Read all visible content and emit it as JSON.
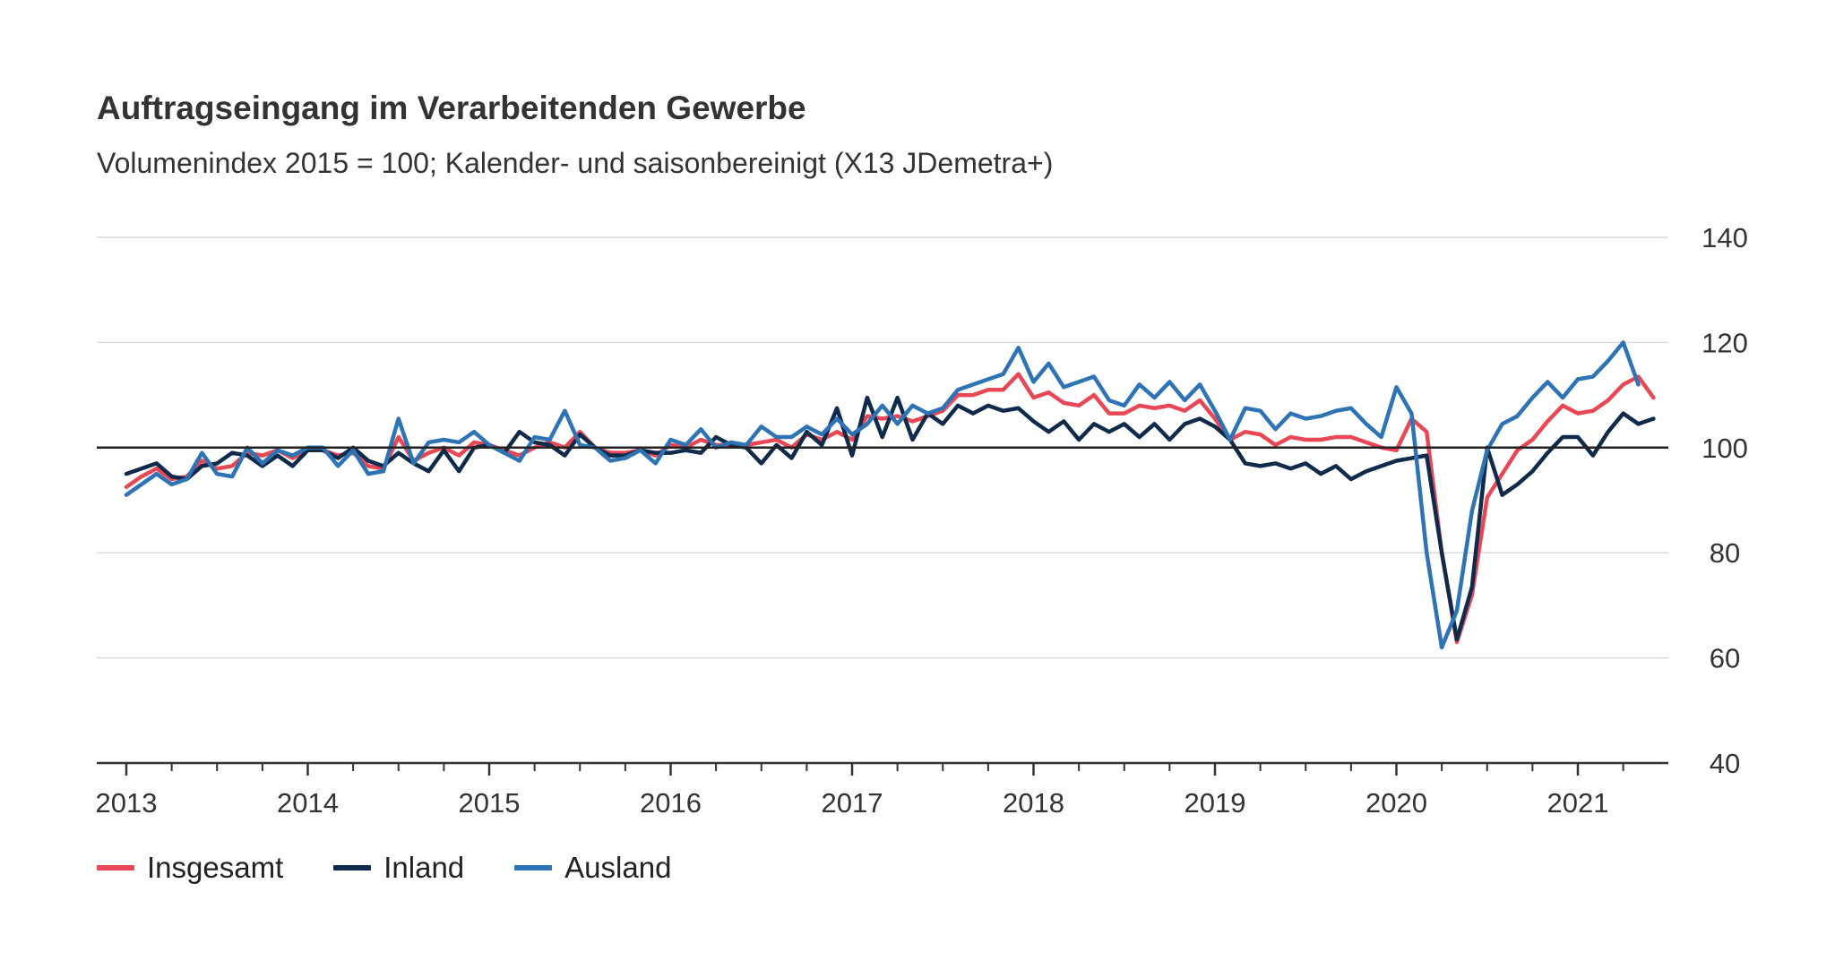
{
  "chart_data": {
    "type": "line",
    "title": "Auftragseingang im Verarbeitenden Gewerbe",
    "subtitle": "Volumenindex 2015 = 100; Kalender- und saisonbereinigt (X13 JDemetra+)",
    "xlabel": "",
    "ylabel": "",
    "ylim": [
      40,
      140
    ],
    "yticks": [
      40,
      60,
      80,
      100,
      120,
      140
    ],
    "x_start": "2013-01",
    "x_end": "2021-05",
    "xticks": [
      "2013",
      "2014",
      "2015",
      "2016",
      "2017",
      "2018",
      "2019",
      "2020",
      "2021"
    ],
    "reference_line": 100,
    "grid": true,
    "legend_position": "bottom-left",
    "series": [
      {
        "name": "Insgesamt",
        "color": "#e84855",
        "values": [
          92.5,
          94.5,
          96,
          94,
          94.5,
          97.5,
          96,
          96.5,
          99,
          98.5,
          99.5,
          98,
          99.5,
          99.5,
          98.5,
          99,
          96.5,
          96,
          102,
          97.5,
          99,
          100,
          98.5,
          101,
          100.5,
          99.5,
          98.5,
          100,
          101,
          100,
          103,
          100,
          99,
          99,
          99.5,
          98.5,
          100.5,
          100,
          101.5,
          100.5,
          100.5,
          100.5,
          101,
          101.5,
          100,
          102.5,
          101.5,
          103,
          101.5,
          106,
          105.5,
          106,
          105,
          106,
          107,
          110,
          110,
          111,
          111,
          114,
          109.5,
          110.5,
          108.5,
          108,
          110,
          106.5,
          106.5,
          108,
          107.5,
          108,
          107,
          109,
          105.5,
          101.5,
          103,
          102.5,
          100.5,
          102,
          101.5,
          101.5,
          102,
          102,
          101,
          100,
          99.5,
          105.5,
          103,
          80,
          63,
          72,
          90.5,
          95,
          99.5,
          101.5,
          105,
          108,
          106.5,
          107,
          109,
          112,
          113.5,
          109.5
        ]
      },
      {
        "name": "Inland",
        "color": "#0f2a4a",
        "values": [
          95,
          96,
          97,
          94.5,
          94,
          96.5,
          97,
          99,
          98.5,
          96.5,
          98.5,
          96.5,
          99.5,
          99.5,
          98,
          100,
          97.5,
          96.5,
          99,
          97,
          95.5,
          99.5,
          95.5,
          100,
          100.5,
          99,
          103,
          101,
          100.5,
          98.5,
          102.5,
          100,
          98.5,
          98.5,
          99.5,
          99,
          99,
          99.5,
          99,
          102,
          100.5,
          100,
          97,
          100.5,
          98,
          103,
          100.5,
          107.5,
          98.5,
          109.5,
          102,
          109.5,
          101.5,
          106.5,
          104.5,
          108,
          106.5,
          108,
          107,
          107.5,
          105,
          103,
          105,
          101.5,
          104.5,
          103,
          104.5,
          102,
          104.5,
          101.5,
          104.5,
          105.5,
          104,
          101.5,
          97,
          96.5,
          97,
          96,
          97,
          95,
          96.5,
          94,
          95.5,
          96.5,
          97.5,
          98,
          98.5,
          80,
          63.5,
          73.5,
          100,
          91,
          93,
          95.5,
          99,
          102,
          102,
          98.5,
          103,
          106.5,
          104.5,
          105.5
        ]
      },
      {
        "name": "Ausland",
        "color": "#2e74b5",
        "values": [
          91,
          93,
          95,
          93,
          94,
          99,
          95,
          94.5,
          100,
          97,
          99.5,
          98.5,
          100,
          100,
          96.5,
          99.5,
          95,
          95.5,
          105.5,
          97,
          101,
          101.5,
          101,
          103,
          100.5,
          99,
          97.5,
          102,
          101.5,
          107,
          100.5,
          100,
          97.5,
          98,
          99.5,
          97,
          101.5,
          100.5,
          103.5,
          100,
          101,
          100.5,
          104,
          102,
          102,
          104,
          102.5,
          105.5,
          102.5,
          104.5,
          108,
          104.5,
          108,
          106.5,
          107.5,
          111,
          112,
          113,
          114,
          119,
          112.5,
          116,
          111.5,
          112.5,
          113.5,
          109,
          108,
          112,
          109.5,
          112.5,
          109,
          112,
          107,
          101.5,
          107.5,
          107,
          103.5,
          106.5,
          105.5,
          106,
          107,
          107.5,
          104.5,
          102,
          111.5,
          106.5,
          80,
          62,
          69,
          88,
          99.5,
          104.5,
          106,
          109.5,
          112.5,
          109.5,
          113,
          113.5,
          116.5,
          120,
          112
        ]
      }
    ]
  }
}
